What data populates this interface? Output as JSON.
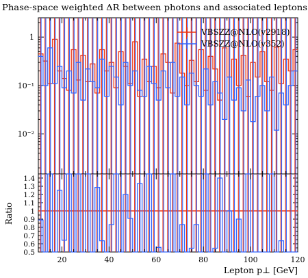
{
  "chart_data": {
    "type": "line",
    "title": "Phase-space weighted ΔR between photons and associated leptons",
    "xlabel": "Lepton p⊥ [GeV]",
    "ylabel_ratio": "Ratio",
    "x_range": [
      10,
      120
    ],
    "y_range_main": [
      0.0015,
      2.5
    ],
    "y_scale_main": "log",
    "y_range_ratio": [
      0.5,
      1.45
    ],
    "x_ticks": [
      20,
      40,
      60,
      80,
      100,
      120
    ],
    "x_tick_labels": [
      "20",
      "40",
      "60",
      "80",
      "100",
      "120"
    ],
    "y_ticks_main": [
      1,
      0.1,
      0.01
    ],
    "y_tick_labels_main": [
      "1",
      "10⁻¹",
      "10⁻²"
    ],
    "y_ticks_ratio": [
      0.5,
      0.6,
      0.7,
      0.8,
      0.9,
      1,
      1.1,
      1.2,
      1.3,
      1.4
    ],
    "y_tick_labels_ratio": [
      "0.5",
      "0.6",
      "0.7",
      "0.8",
      "0.9",
      "1",
      "1.1",
      "1.2",
      "1.3",
      "1.4"
    ],
    "legend_position": "top-right",
    "bin_edges": [
      10,
      12,
      14,
      16,
      18,
      20,
      22,
      24,
      26,
      28,
      30,
      32,
      34,
      36,
      38,
      40,
      42,
      44,
      46,
      48,
      50,
      52,
      54,
      56,
      58,
      60,
      62,
      64,
      66,
      68,
      70,
      72,
      74,
      76,
      78,
      80,
      82,
      84,
      86,
      88,
      90,
      92,
      94,
      96,
      98,
      100,
      102,
      104,
      106,
      108,
      110,
      112,
      114,
      116,
      118,
      120
    ],
    "series": [
      {
        "name": "VBSZZ@NLO(v2918)",
        "color": "#ee3311",
        "values": [
          0.45,
          0.32,
          0.11,
          0.9,
          0.2,
          0.14,
          0.08,
          0.55,
          0.13,
          0.42,
          0.12,
          0.28,
          0.07,
          0.55,
          0.2,
          0.3,
          0.09,
          0.5,
          0.25,
          0.11,
          0.8,
          0.06,
          0.35,
          0.12,
          0.25,
          0.09,
          0.45,
          0.3,
          0.07,
          0.75,
          0.18,
          0.1,
          0.33,
          0.12,
          0.55,
          0.08,
          0.4,
          0.22,
          0.05,
          0.6,
          0.15,
          0.35,
          0.1,
          0.42,
          0.06,
          0.3,
          0.15,
          0.5,
          0.12,
          0.08,
          0.62,
          0.11,
          0.35,
          0.2,
          0.55
        ]
      },
      {
        "name": "VBSZZ@NLO(v352)",
        "color": "#3366ff",
        "values": [
          0.4,
          0.1,
          0.6,
          0.11,
          0.25,
          0.09,
          0.2,
          0.07,
          0.3,
          0.05,
          0.22,
          0.12,
          0.09,
          0.35,
          0.06,
          0.25,
          0.15,
          0.04,
          0.3,
          0.1,
          0.2,
          0.08,
          0.06,
          0.25,
          0.11,
          0.05,
          0.2,
          0.09,
          0.3,
          0.06,
          0.15,
          0.04,
          0.18,
          0.1,
          0.06,
          0.22,
          0.04,
          0.12,
          0.07,
          0.02,
          0.15,
          0.05,
          0.09,
          0.03,
          0.13,
          0.018,
          0.06,
          0.1,
          0.03,
          0.15,
          0.012,
          0.07,
          0.04,
          0.1,
          0.2
        ]
      }
    ]
  }
}
